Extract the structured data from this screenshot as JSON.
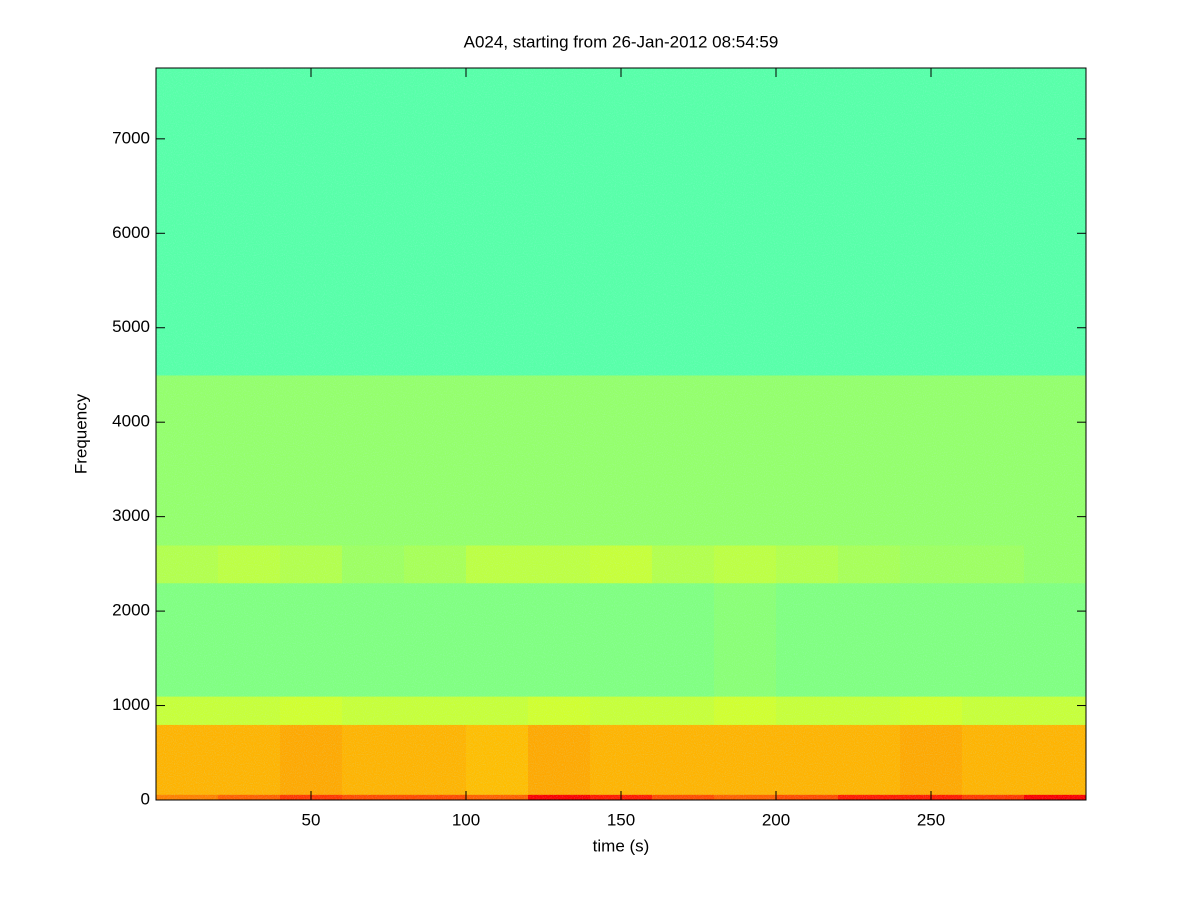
{
  "chart_data": {
    "type": "spectrogram",
    "title": "A024, starting from 26-Jan-2012 08:54:59",
    "x_label": "time (s)",
    "y_label": "Frequency",
    "xlim": [
      0,
      300
    ],
    "ylim": [
      0,
      7750
    ],
    "xticks": [
      50,
      100,
      150,
      200,
      250
    ],
    "yticks": [
      0,
      1000,
      2000,
      3000,
      4000,
      5000,
      6000,
      7000
    ],
    "colormap": "jet",
    "x_bins": [
      0,
      20,
      40,
      60,
      80,
      100,
      120,
      140,
      160,
      180,
      200,
      220,
      240,
      260,
      280,
      300
    ],
    "y_bins": [
      0,
      60,
      800,
      1100,
      2300,
      2700,
      4500,
      7750
    ],
    "values": [
      [
        0.75,
        0.78,
        0.82,
        0.8,
        0.8,
        0.78,
        0.88,
        0.85,
        0.8,
        0.78,
        0.8,
        0.85,
        0.85,
        0.82,
        0.88
      ],
      [
        0.7,
        0.7,
        0.71,
        0.7,
        0.7,
        0.69,
        0.71,
        0.7,
        0.7,
        0.7,
        0.7,
        0.7,
        0.71,
        0.7,
        0.7
      ],
      [
        0.57,
        0.57,
        0.58,
        0.57,
        0.57,
        0.57,
        0.58,
        0.57,
        0.57,
        0.58,
        0.57,
        0.57,
        0.58,
        0.57,
        0.57
      ],
      [
        0.5,
        0.5,
        0.5,
        0.5,
        0.5,
        0.5,
        0.5,
        0.5,
        0.5,
        0.51,
        0.5,
        0.5,
        0.5,
        0.5,
        0.5
      ],
      [
        0.55,
        0.56,
        0.55,
        0.53,
        0.54,
        0.56,
        0.56,
        0.57,
        0.55,
        0.56,
        0.55,
        0.54,
        0.53,
        0.53,
        0.52
      ],
      [
        0.52,
        0.52,
        0.52,
        0.52,
        0.52,
        0.52,
        0.52,
        0.52,
        0.52,
        0.52,
        0.52,
        0.52,
        0.52,
        0.52,
        0.52
      ],
      [
        0.46,
        0.46,
        0.46,
        0.46,
        0.46,
        0.46,
        0.46,
        0.46,
        0.46,
        0.46,
        0.46,
        0.46,
        0.46,
        0.46,
        0.46
      ]
    ]
  }
}
